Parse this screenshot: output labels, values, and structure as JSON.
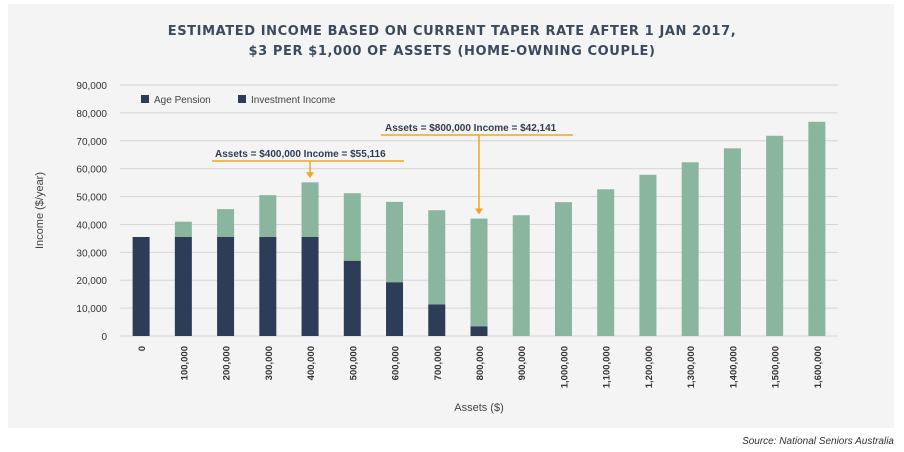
{
  "header": {
    "title_line1": "ESTIMATED INCOME BASED ON CURRENT TAPER RATE AFTER 1 JAN 2017,",
    "title_line2": "$3 PER $1,000 OF ASSETS (HOME-OWNING COUPLE)"
  },
  "footer": {
    "source": "Source: National Seniors Australia"
  },
  "colors": {
    "age_pension": "#2e3d57",
    "investment_income": "#8ab59f",
    "annotation": "#f0a623",
    "grid": "#d6d6d6"
  },
  "chart_data": {
    "type": "bar",
    "stacked": true,
    "title": "ESTIMATED INCOME BASED ON CURRENT TAPER RATE AFTER 1 JAN 2017, $3 PER $1,000 OF ASSETS (HOME-OWNING COUPLE)",
    "xlabel": "Assets ($)",
    "ylabel": "Income ($/year)",
    "ylim": [
      0,
      90000
    ],
    "yticks": [
      "0",
      "10,000",
      "20,000",
      "30,000",
      "40,000",
      "50,000",
      "60,000",
      "70,000",
      "80,000",
      "90,000"
    ],
    "grid": true,
    "legend_position": "top-left",
    "categories": [
      "0",
      "100,000",
      "200,000",
      "300,000",
      "400,000",
      "500,000",
      "600,000",
      "700,000",
      "800,000",
      "900,000",
      "1,000,000",
      "1,100,000",
      "1,200,000",
      "1,300,000",
      "1,400,000",
      "1,500,000",
      "1,600,000"
    ],
    "series": [
      {
        "name": "Age Pension",
        "values": [
          35500,
          35500,
          35500,
          35500,
          35500,
          27000,
          19300,
          11300,
          3500,
          0,
          0,
          0,
          0,
          0,
          0,
          0,
          0
        ]
      },
      {
        "name": "Investment Income",
        "values": [
          0,
          5500,
          10000,
          15000,
          19600,
          24200,
          28800,
          33800,
          38600,
          43300,
          48000,
          52600,
          57800,
          62300,
          67300,
          71800,
          76800
        ]
      }
    ],
    "annotations": [
      {
        "text": "Assets = $400,000 Income = $55,116",
        "category": "400,000",
        "value": 55116
      },
      {
        "text": "Assets = $800,000 Income = $42,141",
        "category": "800,000",
        "value": 42141
      }
    ]
  }
}
